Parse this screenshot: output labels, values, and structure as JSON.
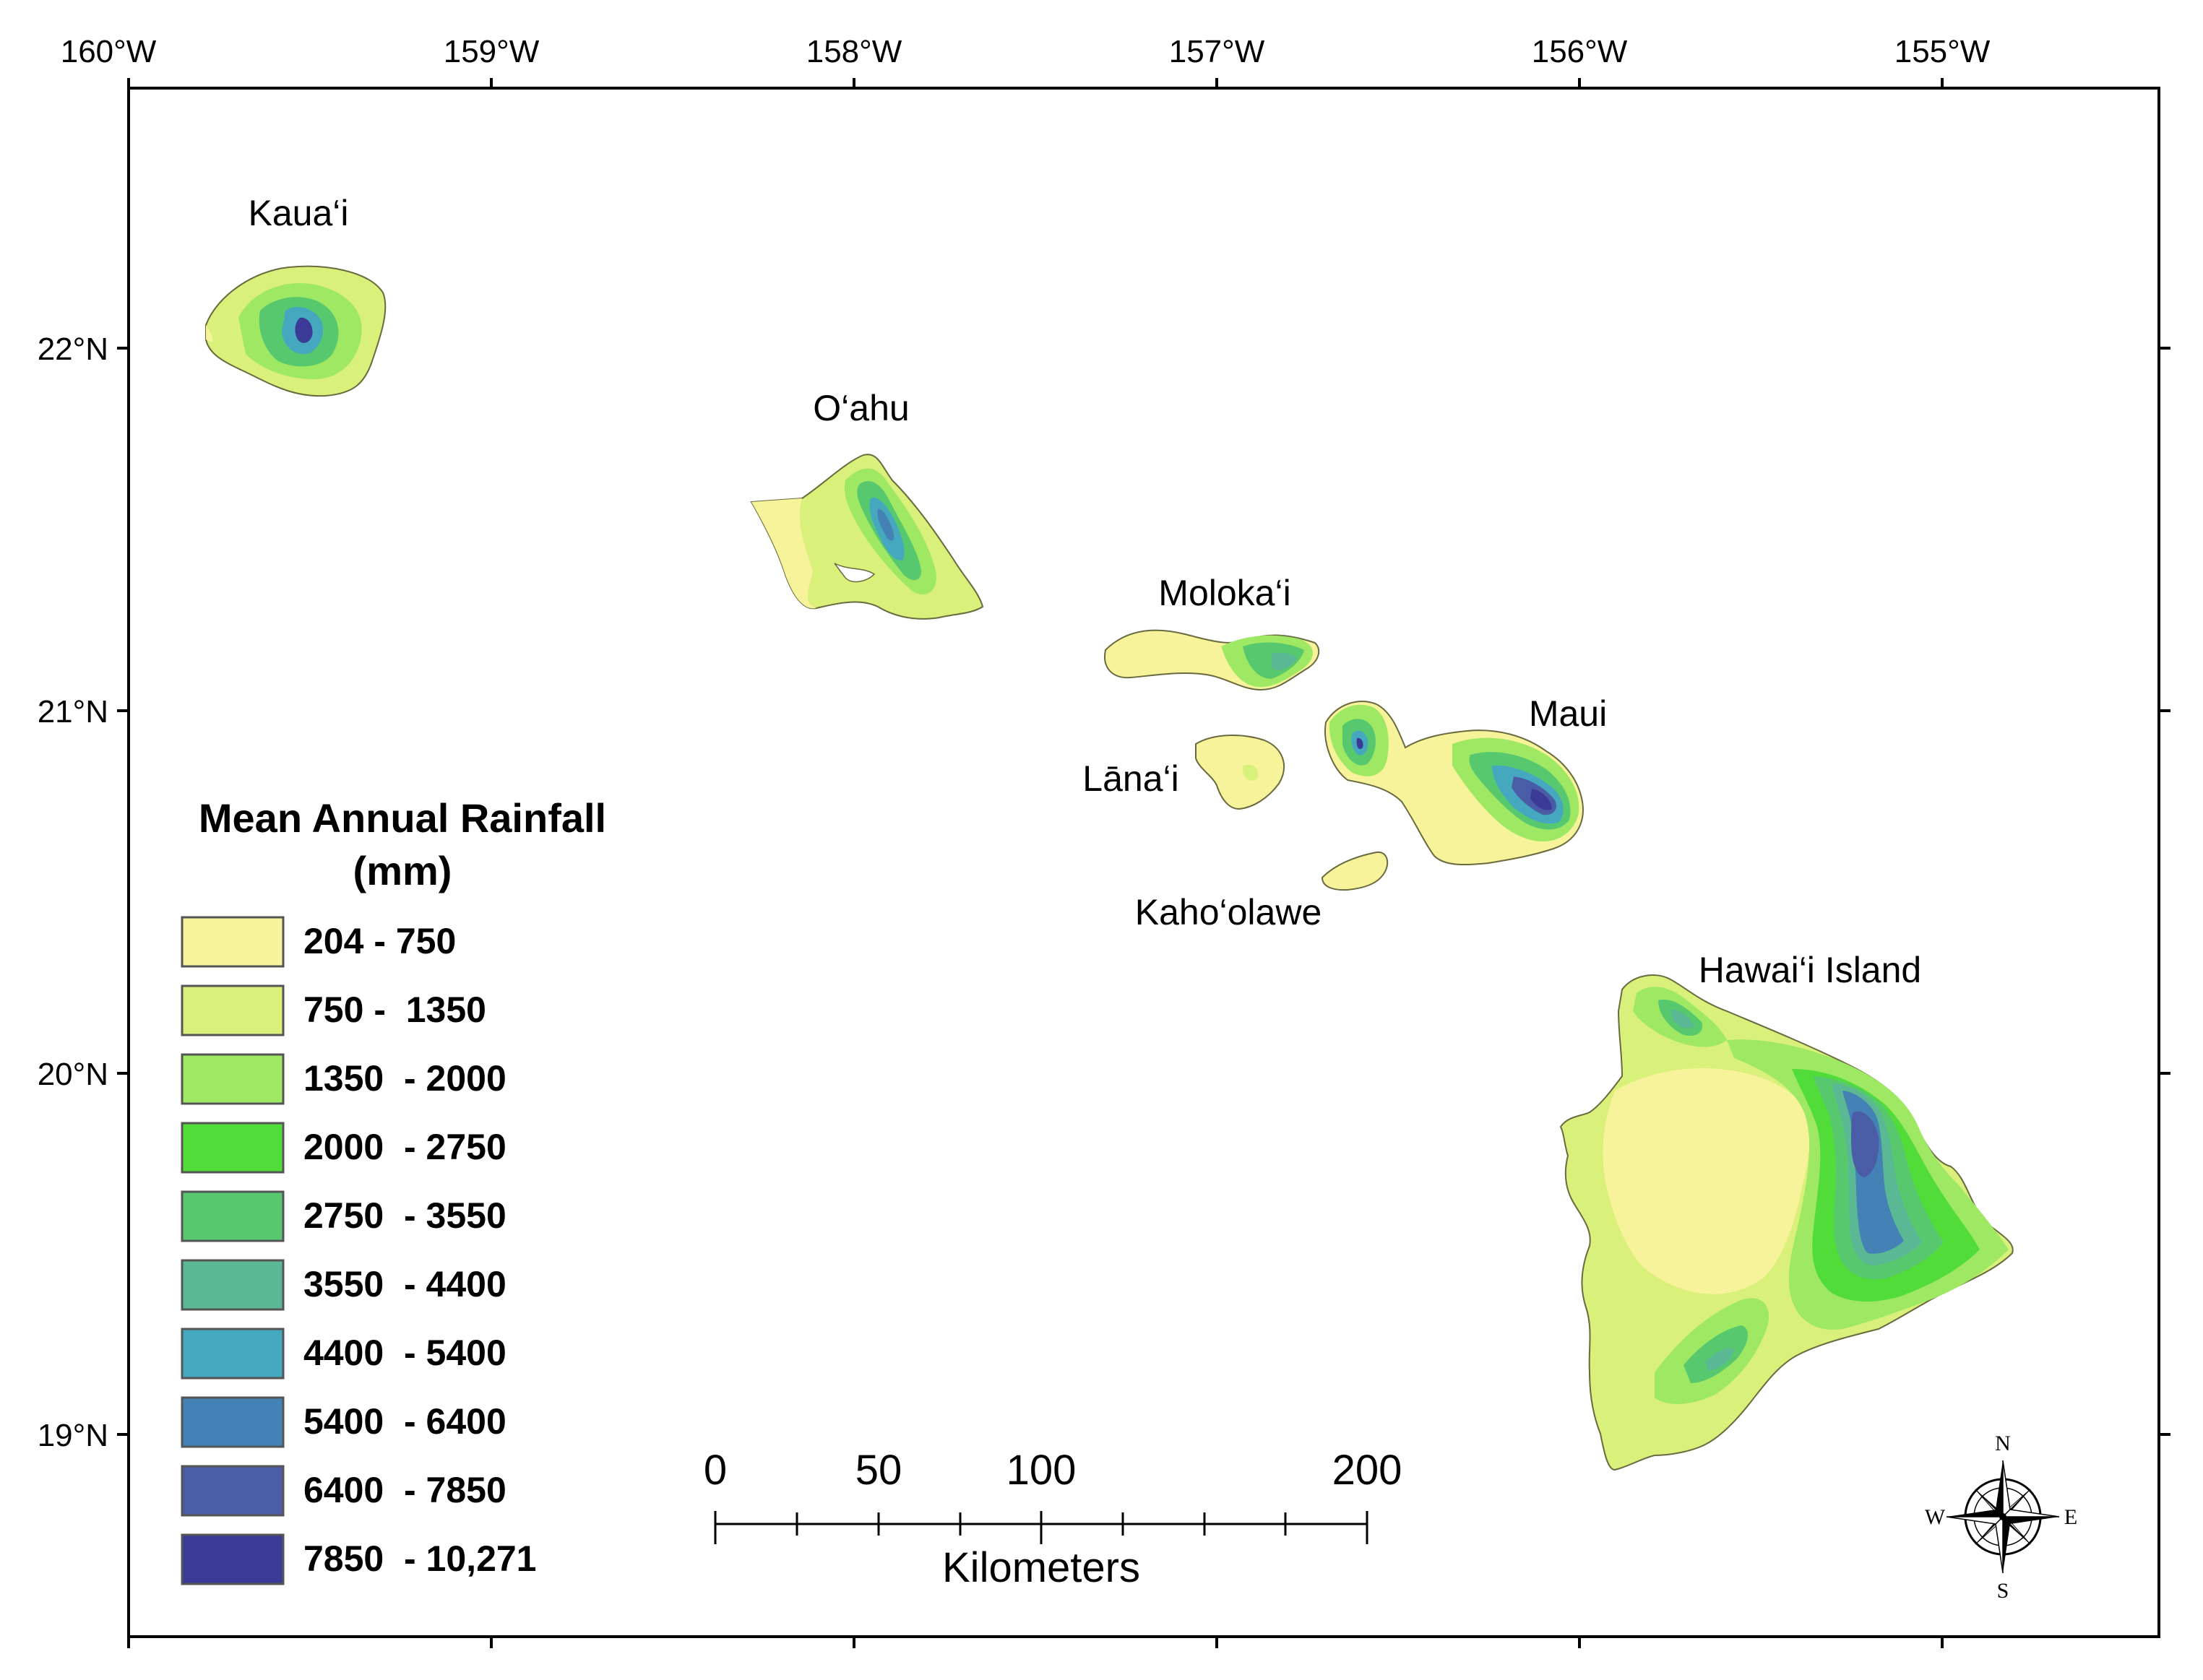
{
  "map": {
    "legend": {
      "title_line1": "Mean Annual Rainfall",
      "title_line2": "(mm)",
      "classes": [
        {
          "label": "204 - 750",
          "color": "#F7F39A"
        },
        {
          "label": "750 -  1350",
          "color": "#D9F07A"
        },
        {
          "label": "1350  - 2000",
          "color": "#9EE864"
        },
        {
          "label": "2000  - 2750",
          "color": "#52DC3A"
        },
        {
          "label": "2750  - 3550",
          "color": "#58C86E"
        },
        {
          "label": "3550  - 4400",
          "color": "#5BB894"
        },
        {
          "label": "4400  - 5400",
          "color": "#45A8BE"
        },
        {
          "label": "5400  - 6400",
          "color": "#4481B4"
        },
        {
          "label": "6400  - 7850",
          "color": "#4A5CA6"
        },
        {
          "label": "7850  - 10,271",
          "color": "#3B3A96"
        }
      ]
    },
    "longitude_ticks": [
      "160°W",
      "159°W",
      "158°W",
      "157°W",
      "156°W",
      "155°W"
    ],
    "latitude_ticks": [
      "22°N",
      "21°N",
      "20°N",
      "19°N"
    ],
    "islands": [
      {
        "key": "kauai",
        "label": "Kaua‘i"
      },
      {
        "key": "oahu",
        "label": "O‘ahu"
      },
      {
        "key": "molokai",
        "label": "Moloka‘i"
      },
      {
        "key": "lanai",
        "label": "Lāna‘i"
      },
      {
        "key": "maui",
        "label": "Maui"
      },
      {
        "key": "kahoolawe",
        "label": "Kaho‘olawe"
      },
      {
        "key": "hawaii",
        "label": "Hawai‘i Island"
      }
    ],
    "scale_bar": {
      "tick_labels": [
        "0",
        "50",
        "100",
        "200"
      ],
      "unit": "Kilometers"
    },
    "compass": {
      "n": "N",
      "s": "S",
      "e": "E",
      "w": "W"
    }
  }
}
